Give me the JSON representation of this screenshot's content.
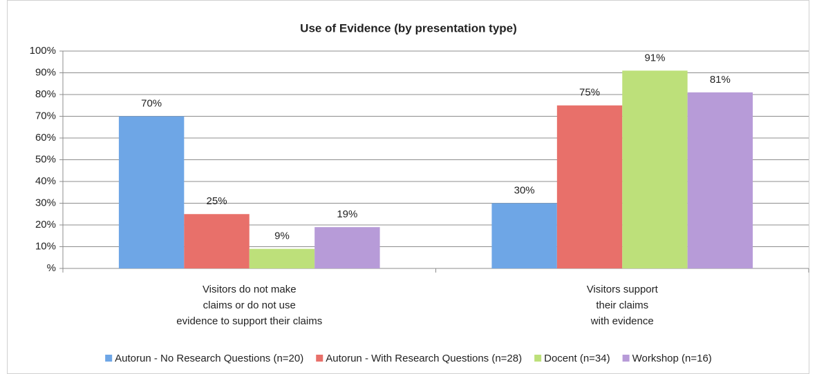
{
  "chart_data": {
    "type": "bar",
    "title": "Use of Evidence (by presentation type)",
    "categories": [
      "Visitors do not make\nclaims or do not use\nevidence to support their claims",
      "Visitors support\ntheir claims\nwith evidence"
    ],
    "series": [
      {
        "name": "Autorun - No Research Questions (n=20)",
        "color": "#6ea6e6",
        "values": [
          70,
          30
        ],
        "value_labels": [
          "70%",
          "30%"
        ]
      },
      {
        "name": "Autorun - With Research Questions (n=28)",
        "color": "#e8706a",
        "values": [
          25,
          75
        ],
        "value_labels": [
          "25%",
          "75%"
        ]
      },
      {
        "name": "Docent (n=34)",
        "color": "#bde07a",
        "values": [
          9,
          91
        ],
        "value_labels": [
          "9%",
          "91%"
        ]
      },
      {
        "name": "Workshop (n=16)",
        "color": "#b79bd8",
        "values": [
          19,
          81
        ],
        "value_labels": [
          "19%",
          "81%"
        ]
      }
    ],
    "ylim": [
      0,
      100
    ],
    "yticks": [
      {
        "value": 0,
        "label": "%"
      },
      {
        "value": 10,
        "label": "10%"
      },
      {
        "value": 20,
        "label": "20%"
      },
      {
        "value": 30,
        "label": "30%"
      },
      {
        "value": 40,
        "label": "40%"
      },
      {
        "value": 50,
        "label": "50%"
      },
      {
        "value": 60,
        "label": "60%"
      },
      {
        "value": 70,
        "label": "70%"
      },
      {
        "value": 80,
        "label": "80%"
      },
      {
        "value": 90,
        "label": "90%"
      },
      {
        "value": 100,
        "label": "100%"
      }
    ],
    "grid": true,
    "legend": "bottom"
  }
}
